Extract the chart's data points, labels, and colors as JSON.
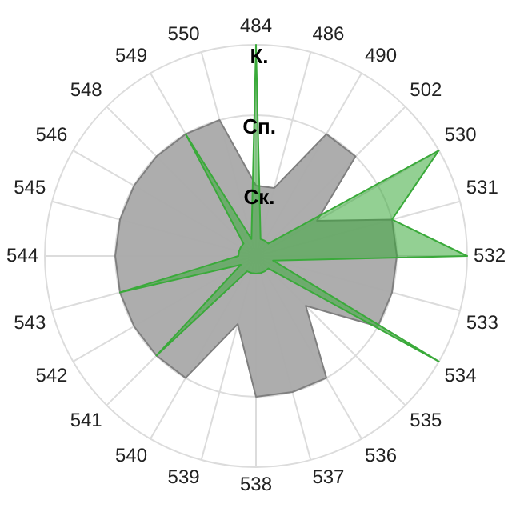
{
  "chart_data": {
    "type": "radar",
    "categories": [
      "484",
      "486",
      "490",
      "502",
      "530",
      "531",
      "532",
      "533",
      "534",
      "535",
      "536",
      "537",
      "538",
      "539",
      "540",
      "541",
      "542",
      "543",
      "544",
      "545",
      "546",
      "548",
      "549",
      "550"
    ],
    "ylim": [
      0,
      3
    ],
    "yticks": [
      {
        "value": 1,
        "label": "Ск."
      },
      {
        "value": 2,
        "label": "Сп."
      },
      {
        "value": 3,
        "label": "К."
      }
    ],
    "grid": true,
    "legend": false,
    "marker": "none",
    "series": [
      {
        "color": "#a9a9a9",
        "values": [
          1,
          1,
          2,
          2,
          1,
          2,
          2,
          2,
          2,
          1,
          2,
          2,
          2,
          1,
          2,
          2,
          2,
          2,
          2,
          2,
          2,
          2,
          2,
          2
        ]
      },
      {
        "color": "#3aaa3a",
        "values": [
          3,
          0.25,
          0.25,
          0.25,
          3,
          2,
          3,
          0.25,
          3,
          0.25,
          0.25,
          0.25,
          0.25,
          0.25,
          0.25,
          2,
          0.25,
          2,
          0.25,
          0.25,
          0.25,
          0.25,
          2,
          0.25
        ]
      }
    ]
  }
}
